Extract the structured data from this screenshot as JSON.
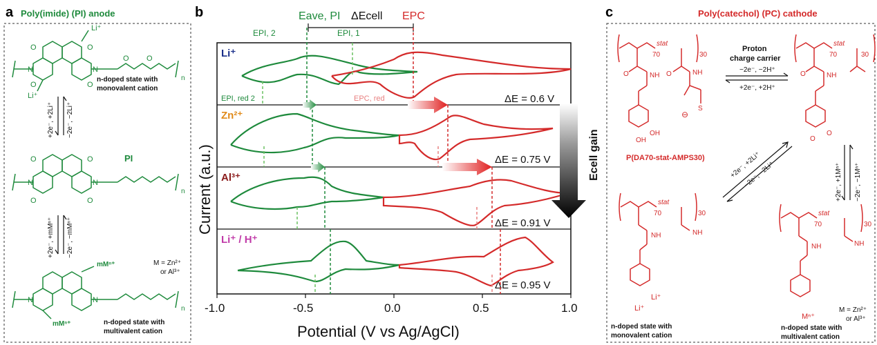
{
  "panels": {
    "a": {
      "letter": "a",
      "title": "Poly(imide) (PI) anode",
      "state_top": [
        "n-doped state with",
        "monovalent cation"
      ],
      "pi_label": "PI",
      "state_bottom": [
        "n-doped state with",
        "multivalent cation"
      ],
      "arrow1_fwd": "+2e⁻, +2Li⁺",
      "arrow1_rev": "−2e⁻, −2Li⁺",
      "arrow2_fwd": "+2e⁻, +mMⁿ⁺",
      "arrow2_rev": "−2e⁻, −mMⁿ⁺",
      "metal_note": [
        "M = Zn²⁺",
        "or Al³⁺"
      ],
      "atoms": {
        "O": "O",
        "N": "N",
        "n": "n",
        "Li": "Li⁺",
        "mM": "mMⁿ⁺"
      }
    },
    "b": {
      "letter": "b",
      "ylabel": "Current (a.u.)",
      "xlabel": "Potential (V vs Ag/AgCl)",
      "xticks": [
        "-1.0",
        "-0.5",
        "0.0",
        "0.5",
        "1.0"
      ],
      "top_labels": {
        "e_ave": "Eave, PI",
        "delta_cell": "ΔEcell",
        "e_pc": "EPC",
        "e_pi2": "EPI, 2",
        "e_pi1": "EPI, 1",
        "e_red2": "EPI, red 2",
        "e_pc_red": "EPC, red"
      },
      "gain_label": "Ecell gain",
      "rows": [
        {
          "ion": "Li⁺",
          "ion_color": "#1a2f8a",
          "delta": "ΔE = 0.6 V"
        },
        {
          "ion": "Zn²⁺",
          "ion_color": "#e08a1a",
          "delta": "ΔE = 0.75 V"
        },
        {
          "ion": "Al³⁺",
          "ion_color": "#8a1a1a",
          "delta": "ΔE = 0.91 V"
        },
        {
          "ion": "Li⁺ / H⁺",
          "ion_color": "#c03aa8",
          "delta": "ΔE = 0.95 V"
        }
      ],
      "colors": {
        "pi": "#1e8a3c",
        "pc": "#d42a2a"
      }
    },
    "c": {
      "letter": "c",
      "title": "Poly(catechol) (PC) cathode",
      "proton_label": [
        "Proton",
        "charge carrier"
      ],
      "proton_fwd": "−2e⁻, −2H⁺",
      "proton_rev": "+2e⁻, +2H⁺",
      "polymer_name": "P(DA70-stat-AMPS30)",
      "diag_fwd": "+2e⁻, +2Li⁺",
      "diag_rev": "−2e⁻, −2Li⁺",
      "vert_fwd": "+2e⁻, +1Mⁿ⁺",
      "vert_rev": "−2e⁻, −1Mⁿ⁺",
      "state_left": [
        "n-doped state with",
        "monovalent cation"
      ],
      "state_right": [
        "n-doped state with",
        "multivalent cation"
      ],
      "metal_note": [
        "M = Zn²⁺",
        "or Al³⁺"
      ],
      "atoms": {
        "stat": "stat",
        "sub70": "70",
        "sub30": "30",
        "O": "O",
        "NH": "NH",
        "OH": "OH",
        "S": "S",
        "minus": "⊖",
        "Li": "Li⁺",
        "M": "Mⁿ⁺"
      }
    }
  }
}
